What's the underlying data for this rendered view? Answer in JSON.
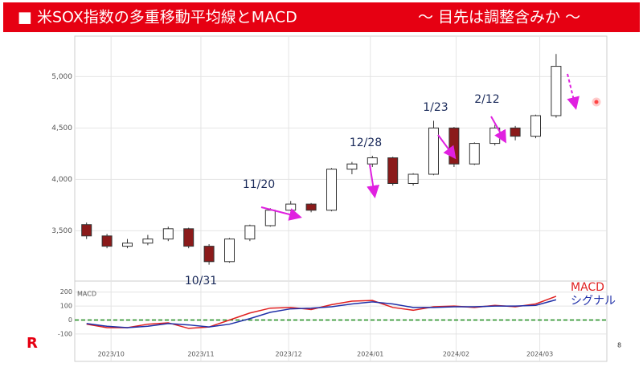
{
  "header": {
    "title": "■ 米SOX指数の多重移動平均線とMACD",
    "subtitle": "～ 目先は調整含みか ～"
  },
  "chart_data": [
    {
      "type": "candlestick",
      "categories": [
        null,
        null,
        null,
        null,
        null,
        null,
        null,
        null,
        null,
        null,
        null,
        null,
        null,
        null,
        null,
        null,
        null,
        null,
        null,
        null,
        null,
        null,
        null,
        null
      ],
      "open": [
        3560,
        3450,
        3350,
        3380,
        3420,
        3520,
        3350,
        3200,
        3420,
        3550,
        3700,
        3760,
        3700,
        4100,
        4150,
        4210,
        3960,
        4050,
        4500,
        4150,
        4350,
        4500,
        4420,
        4620
      ],
      "high": [
        3580,
        3470,
        3420,
        3460,
        3540,
        3530,
        3370,
        3430,
        3560,
        3720,
        3790,
        3770,
        4110,
        4170,
        4230,
        4220,
        4060,
        4570,
        4510,
        4360,
        4530,
        4520,
        4630,
        5220
      ],
      "low": [
        3420,
        3330,
        3330,
        3360,
        3400,
        3330,
        3170,
        3190,
        3400,
        3540,
        3690,
        3680,
        3690,
        4050,
        4120,
        3940,
        3940,
        4040,
        4120,
        4140,
        4330,
        4380,
        4400,
        4600
      ],
      "close": [
        3450,
        3350,
        3380,
        3420,
        3520,
        3350,
        3200,
        3420,
        3550,
        3700,
        3760,
        3700,
        4100,
        4150,
        4210,
        3960,
        4050,
        4500,
        4150,
        4350,
        4500,
        4420,
        4620,
        5100
      ],
      "up_color": "#ffffff",
      "down_color": "#8b1a1a",
      "ylim": [
        3050,
        5370
      ],
      "yticks": [
        {
          "value": 3500,
          "label": "3,500"
        },
        {
          "value": 4000,
          "label": "4,000"
        },
        {
          "value": 4500,
          "label": "4,500"
        },
        {
          "value": 5000,
          "label": "5,000"
        }
      ],
      "xticks": [
        {
          "value": 1.2,
          "label": "2023/10"
        },
        {
          "value": 5.6,
          "label": "2023/11"
        },
        {
          "value": 9.9,
          "label": "2023/12"
        },
        {
          "value": 13.9,
          "label": "2024/01"
        },
        {
          "value": 18.1,
          "label": "2024/02"
        },
        {
          "value": 22.2,
          "label": "2024/03"
        }
      ],
      "annotations": [
        "10/31",
        "11/20",
        "12/28",
        "1/23",
        "2/12"
      ],
      "grid": true
    },
    {
      "type": "line",
      "title": "MACD",
      "categories": [
        null,
        null,
        null,
        null,
        null,
        null,
        null,
        null,
        null,
        null,
        null,
        null,
        null,
        null,
        null,
        null,
        null,
        null,
        null,
        null,
        null,
        null,
        null,
        null
      ],
      "series": [
        {
          "name": "MACD",
          "color": "#e02020",
          "values": [
            -30,
            -55,
            -55,
            -30,
            -20,
            -60,
            -50,
            0,
            50,
            85,
            90,
            75,
            110,
            135,
            140,
            90,
            70,
            95,
            100,
            90,
            105,
            95,
            115,
            170
          ]
        },
        {
          "name": "シグナル",
          "color": "#1f2fa8",
          "values": [
            -25,
            -45,
            -55,
            -45,
            -25,
            -35,
            -50,
            -30,
            10,
            55,
            80,
            85,
            95,
            115,
            130,
            115,
            90,
            90,
            95,
            95,
            100,
            100,
            105,
            145
          ]
        }
      ],
      "ylim": [
        -210,
        250
      ],
      "yticks": [
        -100,
        0,
        100,
        200
      ],
      "grid": true
    }
  ],
  "page_number": "8",
  "logo": "R"
}
